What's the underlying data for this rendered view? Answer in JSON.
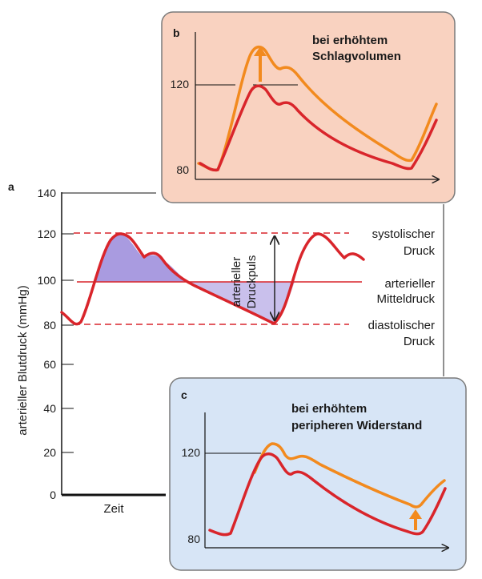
{
  "panel_a": {
    "letter": "a",
    "ylabel": "arterieller Blutdruck (mmHg)",
    "xlabel": "Zeit",
    "ticks": [
      "140",
      "120",
      "100",
      "80",
      "60",
      "40",
      "20",
      "0"
    ],
    "label_pulse": [
      "arterieller",
      "Druckpuls"
    ],
    "label_systolic": [
      "systolischer",
      "Druck"
    ],
    "label_mean": [
      "arterieller",
      "Mitteldruck"
    ],
    "label_diastolic": [
      "diastolischer",
      "Druck"
    ]
  },
  "panel_b": {
    "letter": "b",
    "title": [
      "bei erhöhtem",
      "Schlagvolumen"
    ],
    "ticks": [
      "120",
      "80"
    ]
  },
  "panel_c": {
    "letter": "c",
    "title": [
      "bei erhöhtem",
      "peripheren Widerstand"
    ],
    "ticks": [
      "120",
      "80"
    ]
  },
  "colors": {
    "curve_red": "#d9252b",
    "curve_orange": "#f28a1e",
    "fill_purple": "#a99be0",
    "panel_b_bg": "#f9d2c0",
    "panel_c_bg": "#d7e5f6",
    "panel_border": "#7a7a7a"
  }
}
